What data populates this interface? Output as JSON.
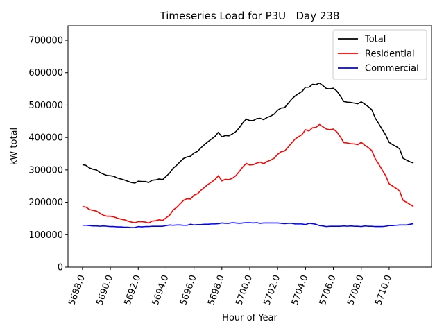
{
  "chart_data": {
    "type": "line",
    "title": "Timeseries Load for P3U   Day 238",
    "xlabel": "Hour of Year",
    "ylabel": "kW total",
    "xlim": [
      5686.96,
      5713.04
    ],
    "ylim": [
      0,
      745000
    ],
    "x_ticks": [
      5688.0,
      5690.0,
      5692.0,
      5694.0,
      5696.0,
      5698.0,
      5700.0,
      5702.0,
      5704.0,
      5706.0,
      5708.0,
      5710.0
    ],
    "x_tick_labels": [
      "5688.0",
      "5690.0",
      "5692.0",
      "5694.0",
      "5696.0",
      "5698.0",
      "5700.0",
      "5702.0",
      "5704.0",
      "5706.0",
      "5708.0",
      "5710.0"
    ],
    "y_ticks": [
      0,
      100000,
      200000,
      300000,
      400000,
      500000,
      600000,
      700000
    ],
    "y_tick_labels": [
      "0",
      "100000",
      "200000",
      "300000",
      "400000",
      "500000",
      "600000",
      "700000"
    ],
    "grid": false,
    "legend_position": "top-right",
    "x": [
      5688.0,
      5688.25,
      5688.5,
      5688.75,
      5689.0,
      5689.25,
      5689.5,
      5689.75,
      5690.0,
      5690.25,
      5690.5,
      5690.75,
      5691.0,
      5691.25,
      5691.5,
      5691.75,
      5692.0,
      5692.25,
      5692.5,
      5692.75,
      5693.0,
      5693.25,
      5693.5,
      5693.75,
      5694.0,
      5694.25,
      5694.5,
      5694.75,
      5695.0,
      5695.25,
      5695.5,
      5695.75,
      5696.0,
      5696.25,
      5696.5,
      5696.75,
      5697.0,
      5697.25,
      5697.5,
      5697.75,
      5698.0,
      5698.25,
      5698.5,
      5698.75,
      5699.0,
      5699.25,
      5699.5,
      5699.75,
      5700.0,
      5700.25,
      5700.5,
      5700.75,
      5701.0,
      5701.25,
      5701.5,
      5701.75,
      5702.0,
      5702.25,
      5702.5,
      5702.75,
      5703.0,
      5703.25,
      5703.5,
      5703.75,
      5704.0,
      5704.25,
      5704.5,
      5704.75,
      5705.0,
      5705.25,
      5705.5,
      5705.75,
      5706.0,
      5706.25,
      5706.5,
      5706.75,
      5707.0,
      5707.25,
      5707.5,
      5707.75,
      5708.0,
      5708.25,
      5708.5,
      5708.75,
      5709.0,
      5709.25,
      5709.5,
      5709.75,
      5710.0,
      5710.25,
      5710.5,
      5710.75,
      5711.0,
      5711.25,
      5711.5,
      5711.75
    ],
    "series": [
      {
        "name": "Total",
        "color": "#000000",
        "values": [
          316000,
          314000,
          306000,
          302000,
          300000,
          292000,
          287000,
          283000,
          282000,
          280000,
          275000,
          272000,
          269000,
          265000,
          261000,
          259000,
          265000,
          264000,
          264000,
          261000,
          268000,
          269000,
          272000,
          270000,
          280000,
          290000,
          305000,
          314000,
          325000,
          335000,
          340000,
          342000,
          352000,
          357000,
          368000,
          378000,
          387000,
          395000,
          403000,
          416000,
          402000,
          406000,
          405000,
          411000,
          418000,
          430000,
          445000,
          457000,
          452000,
          452000,
          458000,
          459000,
          455000,
          462000,
          466000,
          472000,
          484000,
          491000,
          492000,
          505000,
          518000,
          528000,
          535000,
          542000,
          555000,
          555000,
          564000,
          563000,
          568000,
          560000,
          551000,
          550000,
          552000,
          543000,
          528000,
          511000,
          509000,
          508000,
          506000,
          504000,
          510000,
          503000,
          495000,
          486000,
          460000,
          443000,
          425000,
          408000,
          385000,
          378000,
          372000,
          365000,
          336000,
          330000,
          325000,
          321000
        ]
      },
      {
        "name": "Residential",
        "color": "#ff0000",
        "values": [
          187000,
          185000,
          178000,
          175000,
          173000,
          166000,
          160000,
          157000,
          157000,
          155000,
          151000,
          148000,
          146000,
          142000,
          139000,
          137000,
          140000,
          140000,
          139000,
          136000,
          142000,
          143000,
          146000,
          144000,
          152000,
          160000,
          176000,
          184000,
          195000,
          206000,
          211000,
          210000,
          222000,
          226000,
          237000,
          246000,
          255000,
          262000,
          270000,
          282000,
          266000,
          271000,
          270000,
          274000,
          282000,
          295000,
          309000,
          320000,
          315000,
          316000,
          321000,
          324000,
          319000,
          326000,
          330000,
          336000,
          348000,
          356000,
          358000,
          370000,
          383000,
          395000,
          402000,
          409000,
          424000,
          420000,
          430000,
          431000,
          440000,
          433000,
          426000,
          424000,
          426000,
          417000,
          402000,
          384000,
          383000,
          381000,
          380000,
          378000,
          385000,
          376000,
          369000,
          360000,
          335000,
          318000,
          300000,
          282000,
          257000,
          250000,
          243000,
          235000,
          206000,
          200000,
          193000,
          187000
        ]
      },
      {
        "name": "Commercial",
        "color": "#0000ff",
        "values": [
          129000,
          129000,
          128000,
          127000,
          127000,
          126000,
          127000,
          126000,
          125000,
          125000,
          124000,
          124000,
          123000,
          123000,
          122000,
          122000,
          125000,
          124000,
          125000,
          125000,
          126000,
          126000,
          126000,
          126000,
          128000,
          130000,
          129000,
          130000,
          130000,
          129000,
          129000,
          132000,
          130000,
          131000,
          131000,
          132000,
          132000,
          133000,
          133000,
          134000,
          136000,
          135000,
          135000,
          137000,
          136000,
          135000,
          136000,
          137000,
          137000,
          136000,
          137000,
          135000,
          136000,
          136000,
          136000,
          136000,
          136000,
          135000,
          134000,
          135000,
          135000,
          133000,
          133000,
          133000,
          131000,
          135000,
          134000,
          132000,
          128000,
          127000,
          125000,
          126000,
          126000,
          126000,
          126000,
          127000,
          126000,
          127000,
          126000,
          126000,
          125000,
          127000,
          126000,
          126000,
          125000,
          125000,
          125000,
          126000,
          128000,
          128000,
          129000,
          130000,
          130000,
          130000,
          132000,
          134000
        ]
      }
    ]
  }
}
